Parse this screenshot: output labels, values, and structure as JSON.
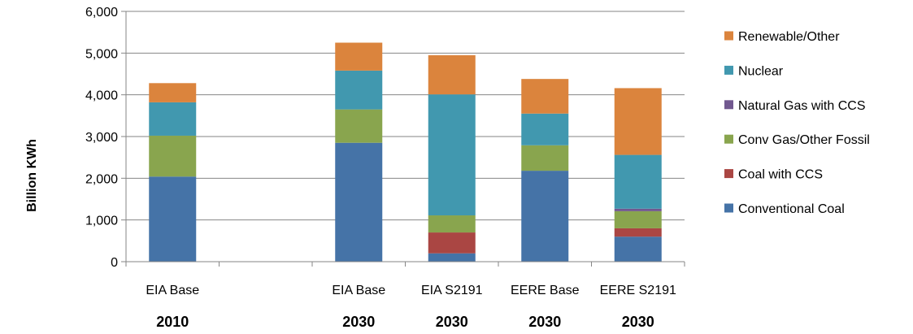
{
  "chart_data": {
    "type": "bar",
    "stacked": true,
    "ylabel": "Billion KWh",
    "ylim": [
      0,
      6000
    ],
    "yticks": [
      "0",
      "1,000",
      "2,000",
      "3,000",
      "4,000",
      "5,000",
      "6,000"
    ],
    "ytick_values": [
      0,
      1000,
      2000,
      3000,
      4000,
      5000,
      6000
    ],
    "grid": true,
    "legend_position": "right",
    "categories": [
      {
        "label": "EIA Base",
        "year": "2010"
      },
      {
        "label": "",
        "year": ""
      },
      {
        "label": "EIA Base",
        "year": "2030"
      },
      {
        "label": "EIA S2191",
        "year": "2030"
      },
      {
        "label": "EERE Base",
        "year": "2030"
      },
      {
        "label": "EERE S2191",
        "year": "2030"
      }
    ],
    "series": [
      {
        "name": "Conventional Coal",
        "color": "#4573A7",
        "values": [
          2040,
          null,
          2850,
          200,
          2180,
          600
        ]
      },
      {
        "name": "Coal with CCS",
        "color": "#AA4643",
        "values": [
          0,
          null,
          0,
          500,
          0,
          200
        ]
      },
      {
        "name": "Conv Gas/Other Fossil",
        "color": "#89A54E",
        "values": [
          980,
          null,
          800,
          410,
          610,
          410
        ]
      },
      {
        "name": "Natural Gas with CCS",
        "color": "#71588F",
        "values": [
          0,
          null,
          0,
          0,
          0,
          60
        ]
      },
      {
        "name": "Nuclear",
        "color": "#4198AF",
        "values": [
          800,
          null,
          930,
          2900,
          760,
          1290
        ]
      },
      {
        "name": "Renewable/Other",
        "color": "#DB843D",
        "values": [
          460,
          null,
          670,
          940,
          830,
          1600
        ]
      }
    ]
  }
}
